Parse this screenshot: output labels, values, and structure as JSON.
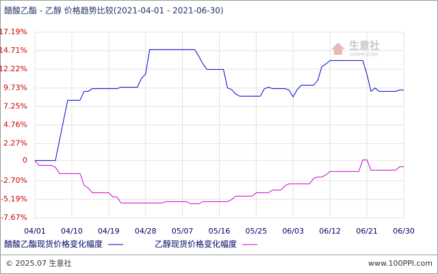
{
  "chart_data": {
    "type": "line",
    "title": "醋酸乙酯 - 乙醇 价格趋势比较(2021-04-01 - 2021-06-30)",
    "categories": [
      "04/01",
      null,
      null,
      null,
      null,
      null,
      null,
      null,
      null,
      "04/10",
      null,
      null,
      null,
      null,
      null,
      null,
      null,
      null,
      "04/19",
      null,
      null,
      null,
      null,
      null,
      null,
      null,
      null,
      "04/28",
      null,
      null,
      null,
      null,
      null,
      null,
      null,
      null,
      "05/07",
      null,
      null,
      null,
      null,
      null,
      null,
      null,
      null,
      "05/16",
      null,
      null,
      null,
      null,
      null,
      null,
      null,
      null,
      "05/25",
      null,
      null,
      null,
      null,
      null,
      null,
      null,
      null,
      "06/03",
      null,
      null,
      null,
      null,
      null,
      null,
      null,
      null,
      "06/12",
      null,
      null,
      null,
      null,
      null,
      null,
      null,
      null,
      "06/21",
      null,
      null,
      null,
      null,
      null,
      null,
      null,
      null,
      "06/30"
    ],
    "series": [
      {
        "name": "醋酸乙酯现货价格变化幅度",
        "color": "#0000cc",
        "values": [
          0,
          0,
          0,
          0,
          0,
          0,
          2.7,
          5.4,
          8.07,
          8.07,
          8.07,
          8.07,
          9.27,
          9.27,
          9.63,
          9.63,
          9.63,
          9.63,
          9.63,
          9.63,
          9.63,
          9.82,
          9.82,
          9.82,
          9.82,
          9.82,
          11.0,
          11.6,
          14.86,
          14.86,
          14.86,
          14.86,
          14.86,
          14.86,
          14.86,
          14.86,
          14.86,
          14.86,
          14.86,
          14.86,
          13.94,
          12.94,
          12.2,
          12.2,
          12.2,
          12.2,
          12.2,
          9.72,
          9.5,
          8.9,
          8.62,
          8.62,
          8.62,
          8.62,
          8.62,
          8.62,
          9.63,
          9.82,
          9.63,
          9.63,
          9.63,
          9.63,
          9.45,
          8.53,
          9.5,
          10.09,
          10.09,
          10.09,
          10.09,
          10.73,
          12.57,
          12.94,
          13.39,
          13.39,
          13.39,
          13.39,
          13.39,
          13.39,
          13.39,
          13.39,
          13.39,
          11.56,
          9.27,
          9.72,
          9.27,
          9.27,
          9.27,
          9.27,
          9.27,
          9.45,
          9.45
        ]
      },
      {
        "name": "乙醇现货价格变化幅度",
        "color": "#cc00cc",
        "values": [
          0,
          -0.64,
          -0.64,
          -0.64,
          -0.64,
          -0.9,
          -1.74,
          -1.74,
          -1.74,
          -1.74,
          -1.74,
          -1.74,
          -3.3,
          -3.67,
          -4.31,
          -4.31,
          -4.31,
          -4.31,
          -4.31,
          -4.86,
          -4.86,
          -5.69,
          -5.69,
          -5.69,
          -5.69,
          -5.69,
          -5.69,
          -5.69,
          -5.69,
          -5.69,
          -5.69,
          -5.69,
          -5.5,
          -5.5,
          -5.5,
          -5.5,
          -5.5,
          -5.5,
          -5.78,
          -5.78,
          -5.78,
          -5.5,
          -5.5,
          -5.5,
          -5.5,
          -5.5,
          -5.5,
          -5.5,
          -5.23,
          -4.77,
          -4.77,
          -4.77,
          -4.77,
          -4.77,
          -4.31,
          -4.31,
          -4.31,
          -4.31,
          -3.94,
          -3.94,
          -3.94,
          -3.39,
          -3.12,
          -3.12,
          -3.12,
          -3.12,
          -3.12,
          -3.12,
          -2.39,
          -2.2,
          -2.2,
          -1.93,
          -1.47,
          -1.47,
          -1.47,
          -1.47,
          -1.47,
          -1.47,
          -1.47,
          -1.47,
          0.09,
          0.09,
          -1.28,
          -1.28,
          -1.28,
          -1.28,
          -1.28,
          -1.28,
          -1.28,
          -0.83,
          -0.83
        ]
      }
    ],
    "ylim": [
      -7.67,
      17.19
    ],
    "yticks": [
      {
        "value": 17.19,
        "label": "17.19%"
      },
      {
        "value": 14.71,
        "label": "14.71%"
      },
      {
        "value": 12.22,
        "label": "12.22%"
      },
      {
        "value": 9.73,
        "label": "9.73%"
      },
      {
        "value": 7.25,
        "label": "7.25%"
      },
      {
        "value": 4.76,
        "label": "4.76%"
      },
      {
        "value": 2.27,
        "label": "2.27%"
      },
      0,
      {
        "value": -2.7,
        "label": "-2.70%"
      },
      {
        "value": -5.19,
        "label": "-5.19%"
      },
      {
        "value": -7.67,
        "label": "-7.67%"
      }
    ],
    "grid": true
  },
  "watermark": {
    "brand": "生意社",
    "site": "100PPI.COM"
  },
  "footer": {
    "copyright": "© 2025.07 生意社",
    "url": "www.100PPI.com"
  }
}
